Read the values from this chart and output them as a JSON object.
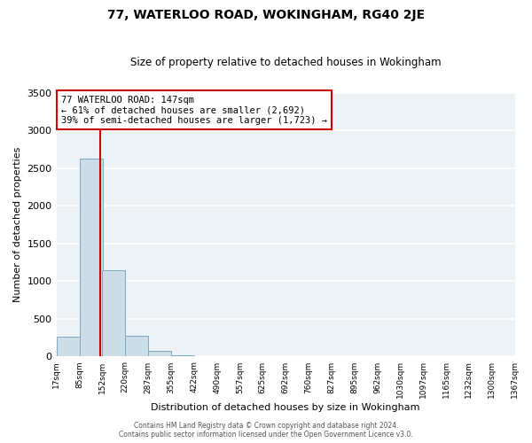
{
  "title": "77, WATERLOO ROAD, WOKINGHAM, RG40 2JE",
  "subtitle": "Size of property relative to detached houses in Wokingham",
  "xlabel": "Distribution of detached houses by size in Wokingham",
  "ylabel": "Number of detached properties",
  "bar_color": "#ccdde8",
  "bar_edge_color": "#7aaac0",
  "bin_labels": [
    "17sqm",
    "85sqm",
    "152sqm",
    "220sqm",
    "287sqm",
    "355sqm",
    "422sqm",
    "490sqm",
    "557sqm",
    "625sqm",
    "692sqm",
    "760sqm",
    "827sqm",
    "895sqm",
    "962sqm",
    "1030sqm",
    "1097sqm",
    "1165sqm",
    "1232sqm",
    "1300sqm",
    "1367sqm"
  ],
  "bin_values": [
    265,
    2630,
    1145,
    275,
    80,
    20,
    5,
    0,
    0,
    0,
    0,
    0,
    0,
    0,
    0,
    0,
    0,
    0,
    0,
    0
  ],
  "bin_edges": [
    17,
    85,
    152,
    220,
    287,
    355,
    422,
    490,
    557,
    625,
    692,
    760,
    827,
    895,
    962,
    1030,
    1097,
    1165,
    1232,
    1300,
    1367
  ],
  "property_size": 147,
  "vline_color": "#cc0000",
  "ylim": [
    0,
    3500
  ],
  "yticks": [
    0,
    500,
    1000,
    1500,
    2000,
    2500,
    3000,
    3500
  ],
  "annotation_title": "77 WATERLOO ROAD: 147sqm",
  "annotation_line1": "← 61% of detached houses are smaller (2,692)",
  "annotation_line2": "39% of semi-detached houses are larger (1,723) →",
  "annotation_box_color": "#ffffff",
  "annotation_box_edge_color": "#cc0000",
  "footer_line1": "Contains HM Land Registry data © Crown copyright and database right 2024.",
  "footer_line2": "Contains public sector information licensed under the Open Government Licence v3.0.",
  "background_color": "#edf2f7",
  "grid_color": "#ffffff",
  "fig_background": "#ffffff"
}
